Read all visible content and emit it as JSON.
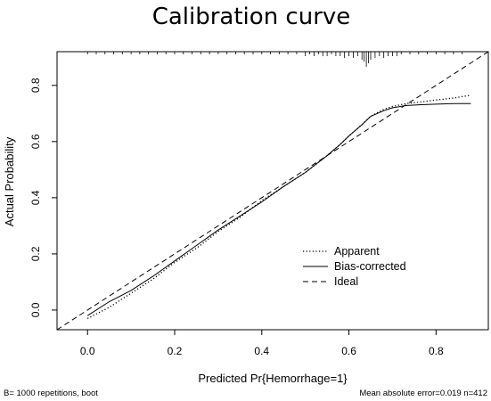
{
  "chart_data": {
    "type": "line",
    "title": "Calibration curve",
    "xlabel": "Predicted Pr{Hemorrhage=1}",
    "ylabel": "Actual Probability",
    "xlim": [
      -0.07,
      0.92
    ],
    "ylim": [
      -0.07,
      0.92
    ],
    "xticks": [
      0.0,
      0.2,
      0.4,
      0.6,
      0.8
    ],
    "yticks": [
      0.0,
      0.2,
      0.4,
      0.6,
      0.8
    ],
    "xtick_labels": [
      "0.0",
      "0.2",
      "0.4",
      "0.6",
      "0.8"
    ],
    "ytick_labels": [
      "0.0",
      "0.2",
      "0.4",
      "0.6",
      "0.8"
    ],
    "grid": false,
    "legend_position": "center-right",
    "series": [
      {
        "name": "Apparent",
        "style": "dotted",
        "x": [
          0.0,
          0.05,
          0.1,
          0.15,
          0.2,
          0.25,
          0.3,
          0.35,
          0.4,
          0.45,
          0.5,
          0.55,
          0.58,
          0.6,
          0.63,
          0.65,
          0.68,
          0.7,
          0.73,
          0.76,
          0.8,
          0.84,
          0.88
        ],
        "y": [
          -0.03,
          0.01,
          0.06,
          0.11,
          0.17,
          0.22,
          0.28,
          0.33,
          0.39,
          0.44,
          0.49,
          0.55,
          0.59,
          0.62,
          0.66,
          0.69,
          0.715,
          0.725,
          0.735,
          0.74,
          0.748,
          0.755,
          0.765
        ]
      },
      {
        "name": "Bias-corrected",
        "style": "solid",
        "x": [
          0.0,
          0.05,
          0.1,
          0.15,
          0.2,
          0.25,
          0.3,
          0.35,
          0.4,
          0.45,
          0.5,
          0.55,
          0.58,
          0.6,
          0.63,
          0.65,
          0.68,
          0.7,
          0.73,
          0.76,
          0.8,
          0.84,
          0.88
        ],
        "y": [
          -0.02,
          0.03,
          0.07,
          0.12,
          0.175,
          0.23,
          0.285,
          0.335,
          0.385,
          0.44,
          0.49,
          0.55,
          0.59,
          0.62,
          0.66,
          0.69,
          0.71,
          0.72,
          0.728,
          0.731,
          0.733,
          0.735,
          0.735
        ]
      },
      {
        "name": "Ideal",
        "style": "dashed",
        "x": [
          -0.07,
          0.92
        ],
        "y": [
          -0.07,
          0.92
        ]
      }
    ],
    "rug_x": [
      0.0,
      0.02,
      0.04,
      0.06,
      0.08,
      0.1,
      0.12,
      0.14,
      0.16,
      0.18,
      0.2,
      0.22,
      0.24,
      0.26,
      0.28,
      0.3,
      0.32,
      0.34,
      0.36,
      0.38,
      0.4,
      0.42,
      0.44,
      0.46,
      0.48,
      0.5,
      0.51,
      0.52,
      0.53,
      0.54,
      0.55,
      0.56,
      0.57,
      0.58,
      0.59,
      0.6,
      0.61,
      0.62,
      0.63,
      0.635,
      0.64,
      0.645,
      0.65,
      0.66,
      0.67,
      0.68,
      0.69,
      0.7,
      0.71,
      0.72,
      0.74,
      0.76,
      0.78,
      0.8,
      0.82,
      0.84,
      0.86
    ],
    "rug_heights": [
      1,
      1,
      1,
      1,
      1,
      1,
      1,
      1,
      1,
      1,
      1,
      1,
      1,
      1,
      1,
      1,
      1,
      1,
      1,
      1,
      1,
      1,
      1,
      1,
      1,
      2,
      1,
      2,
      1,
      2,
      2,
      1,
      2,
      2,
      3,
      2,
      3,
      2,
      4,
      5,
      8,
      6,
      4,
      3,
      2,
      3,
      2,
      2,
      2,
      1,
      1,
      1,
      1,
      1,
      1,
      1,
      1
    ],
    "footnote_left": "B= 1000 repetitions, boot",
    "footnote_right": "Mean absolute error=0.019 n=412"
  }
}
